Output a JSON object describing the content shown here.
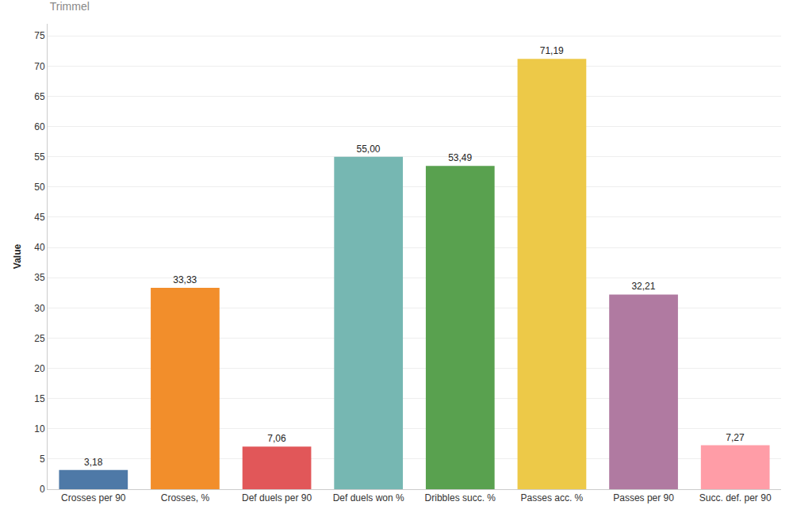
{
  "chart_data": {
    "type": "bar",
    "title": "Trimmel",
    "y_label": "Value",
    "categories": [
      "Crosses per 90",
      "Crosses, %",
      "Def duels per 90",
      "Def duels won %",
      "Dribbles succ. %",
      "Passes acc. %",
      "Passes per 90",
      "Succ. def. per 90"
    ],
    "values": [
      3.18,
      33.33,
      7.06,
      55.0,
      53.49,
      71.19,
      32.21,
      7.27
    ],
    "value_labels": [
      "3,18",
      "33,33",
      "7,06",
      "55,00",
      "53,49",
      "71,19",
      "32,21",
      "7,27"
    ],
    "colors": [
      "#4e79a7",
      "#f28e2b",
      "#e15759",
      "#76b7b2",
      "#59a14f",
      "#edc948",
      "#b07aa1",
      "#ff9da7"
    ],
    "ylim": [
      0,
      77
    ],
    "yticks": [
      0,
      5,
      10,
      15,
      20,
      25,
      30,
      35,
      40,
      45,
      50,
      55,
      60,
      65,
      70,
      75
    ],
    "grid": true,
    "data_labels": true
  }
}
